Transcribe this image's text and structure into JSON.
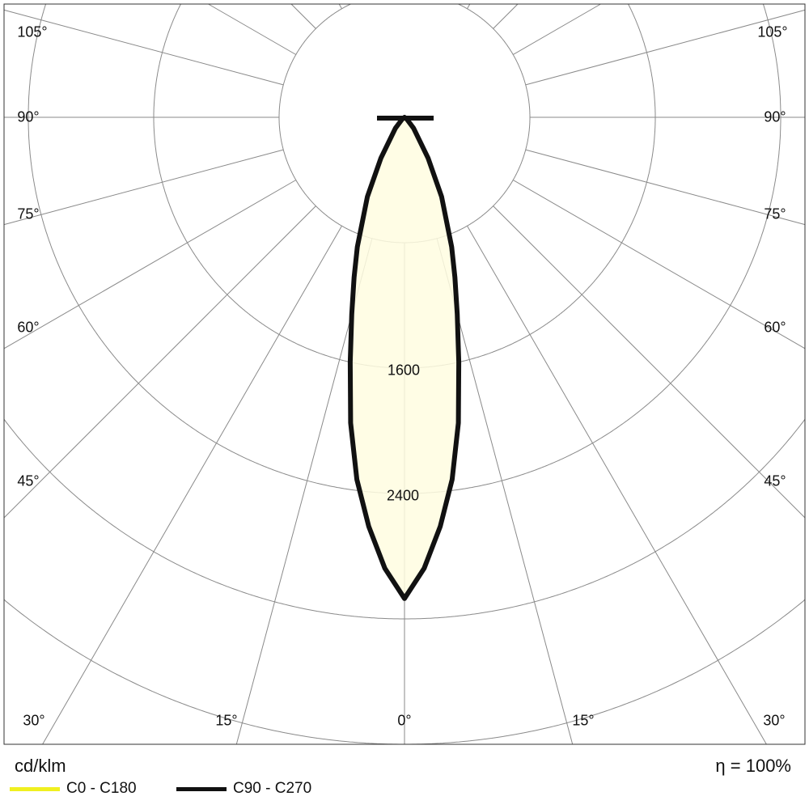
{
  "chart_data": {
    "type": "polar",
    "unit_label": "cd/klm",
    "efficiency_label": "η = 100%",
    "radial_ticks": [
      800,
      1600,
      2400,
      3200,
      4000
    ],
    "radial_tick_labels": [
      "1600",
      "2400"
    ],
    "angle_labels": {
      "left": [
        "105°",
        "90°",
        "75°",
        "60°",
        "45°"
      ],
      "right": [
        "105°",
        "90°",
        "75°",
        "60°",
        "45°"
      ],
      "bottom": [
        "30°",
        "15°",
        "0°",
        "15°",
        "30°"
      ]
    },
    "angles_deg": [
      0,
      2.5,
      5,
      7.5,
      10,
      12.5,
      15,
      17.5,
      20,
      25,
      30,
      40,
      50,
      60,
      90
    ],
    "series": [
      {
        "name": "C0 - C180",
        "color": "#f0f020",
        "values": [
          3070,
          2880,
          2620,
          2330,
          1980,
          1600,
          1300,
          1070,
          880,
          560,
          300,
          90,
          20,
          0,
          0
        ]
      },
      {
        "name": "C90 - C270",
        "color": "#111111",
        "values": [
          3070,
          2880,
          2620,
          2330,
          1980,
          1600,
          1300,
          1070,
          880,
          560,
          300,
          90,
          20,
          0,
          0
        ]
      }
    ],
    "fill_color": "#fffde0",
    "grid": true
  }
}
